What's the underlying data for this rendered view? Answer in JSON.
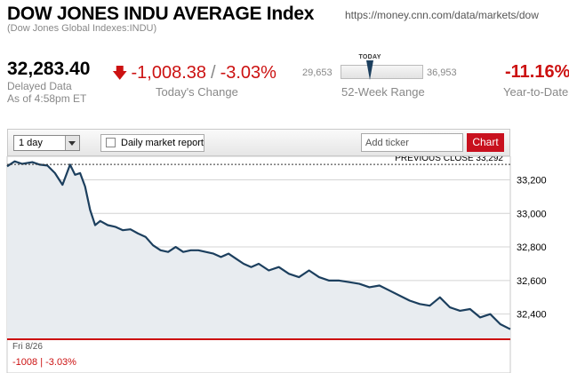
{
  "header": {
    "title": "DOW JONES INDU AVERAGE Index",
    "subtitle": "(Dow Jones Global Indexes:INDU)",
    "url": "https://money.cnn.com/data/markets/dow"
  },
  "quote": {
    "price": "32,283.40",
    "delayed_label": "Delayed Data",
    "as_of": "As of 4:58pm ET",
    "change_points": "-1,008.38",
    "change_sep": "/",
    "change_percent": "-3.03%",
    "change_label": "Today's Change",
    "range_low": "29,653",
    "range_high": "36,953",
    "range_today_label": "TODAY",
    "range_label": "52-Week Range",
    "range_position": 0.36,
    "ytd_value": "-11.16%",
    "ytd_label": "Year-to-Date",
    "colors": {
      "negative": "#cc1111",
      "muted": "#888888"
    }
  },
  "toolbar": {
    "period_value": "1 day",
    "daily_report_label": "Daily market report",
    "ticker_placeholder": "Add ticker",
    "chart_button": "Chart"
  },
  "chart_data": {
    "type": "area",
    "previous_close_label": "PREVIOUS CLOSE 33,292",
    "previous_close": 33292,
    "ylim": [
      32250,
      33340
    ],
    "yticks": [
      32400,
      32600,
      32800,
      33000,
      33200
    ],
    "ytick_labels": [
      "32,400",
      "32,600",
      "32,800",
      "33,000",
      "33,200"
    ],
    "date_label": "Fri 8/26",
    "footer_change": "-1008 | -3.03%",
    "x_range": [
      0,
      100
    ],
    "series": [
      {
        "x": [
          0,
          1.5,
          3,
          5,
          6.5,
          8,
          9.5,
          11,
          12.5,
          13.5,
          14.5,
          15.5,
          16.5,
          17.5,
          18.5,
          20,
          21.5,
          23,
          24.5,
          26,
          27.5,
          29,
          30.5,
          32,
          33.5,
          35,
          36.5,
          38,
          39.5,
          41,
          42.5,
          44,
          45.5,
          47,
          48.5,
          50,
          52,
          54,
          56,
          58,
          60,
          62,
          64,
          66,
          68,
          70,
          72,
          74,
          76,
          78,
          80,
          82,
          84,
          86,
          88,
          90,
          92,
          94,
          96,
          98,
          100
        ],
        "values": [
          33280,
          33310,
          33295,
          33305,
          33290,
          33285,
          33240,
          33170,
          33290,
          33230,
          33240,
          33160,
          33020,
          32930,
          32955,
          32930,
          32920,
          32900,
          32905,
          32880,
          32860,
          32810,
          32780,
          32770,
          32800,
          32770,
          32780,
          32780,
          32770,
          32760,
          32740,
          32760,
          32730,
          32700,
          32680,
          32700,
          32660,
          32680,
          32640,
          32620,
          32660,
          32620,
          32600,
          32600,
          32590,
          32580,
          32560,
          32570,
          32540,
          32510,
          32480,
          32460,
          32450,
          32500,
          32440,
          32420,
          32430,
          32380,
          32400,
          32340,
          32310
        ]
      }
    ],
    "colors": {
      "line": "#1c3f5e",
      "fill": "#e8ecf0",
      "baseline": "#cc1111",
      "grid": "#d4d4d4"
    }
  }
}
